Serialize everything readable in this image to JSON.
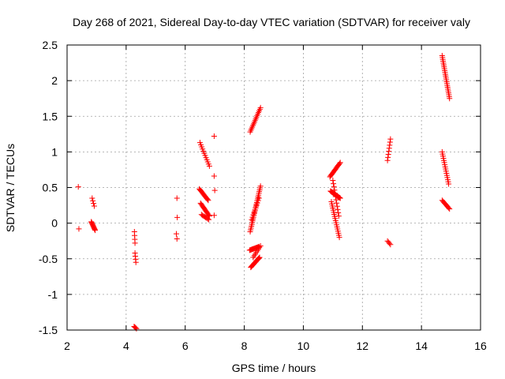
{
  "chart_data": {
    "type": "scatter",
    "title": "Day 268 of 2021, Sidereal Day-to-day VTEC variation (SDTVAR) for receiver valy",
    "xlabel": "GPS time / hours",
    "ylabel": "SDTVAR / TECUs",
    "xlim": [
      2,
      16
    ],
    "ylim": [
      -1.5,
      2.5
    ],
    "xticks": [
      2,
      4,
      6,
      8,
      10,
      12,
      14,
      16
    ],
    "yticks": [
      -1.5,
      -1,
      -0.5,
      0,
      0.5,
      1,
      1.5,
      2,
      2.5
    ],
    "xtick_labels": [
      "2",
      "4",
      "6",
      "8",
      "10",
      "12",
      "14",
      "16"
    ],
    "ytick_labels": [
      "-1.5",
      "-1",
      "-0.5",
      "0",
      "0.5",
      "1",
      "1.5",
      "2",
      "2.5"
    ],
    "grid": true,
    "marker": "+",
    "color": "#ff0000",
    "segments": [
      {
        "x0": 2.38,
        "x1": 2.38,
        "y0": 0.51,
        "y1": 0.51,
        "n": 1
      },
      {
        "x0": 2.4,
        "x1": 2.4,
        "y0": -0.08,
        "y1": -0.08,
        "n": 1
      },
      {
        "x0": 2.85,
        "x1": 2.92,
        "y0": 0.35,
        "y1": 0.24,
        "n": 4
      },
      {
        "x0": 2.82,
        "x1": 2.95,
        "y0": 0.02,
        "y1": -0.1,
        "n": 12
      },
      {
        "x0": 4.28,
        "x1": 4.3,
        "y0": -0.12,
        "y1": -0.28,
        "n": 4
      },
      {
        "x0": 4.3,
        "x1": 4.33,
        "y0": -0.42,
        "y1": -0.55,
        "n": 4
      },
      {
        "x0": 4.27,
        "x1": 4.35,
        "y0": -1.45,
        "y1": -1.48,
        "n": 4
      },
      {
        "x0": 5.72,
        "x1": 5.73,
        "y0": 0.35,
        "y1": 0.08,
        "n": 2
      },
      {
        "x0": 5.7,
        "x1": 5.72,
        "y0": -0.15,
        "y1": -0.22,
        "n": 2
      },
      {
        "x0": 6.5,
        "x1": 6.82,
        "y0": 1.13,
        "y1": 0.8,
        "n": 12
      },
      {
        "x0": 6.48,
        "x1": 6.78,
        "y0": 0.48,
        "y1": 0.32,
        "n": 14
      },
      {
        "x0": 6.52,
        "x1": 6.82,
        "y0": 0.28,
        "y1": 0.1,
        "n": 14
      },
      {
        "x0": 6.55,
        "x1": 6.8,
        "y0": 0.12,
        "y1": 0.05,
        "n": 8
      },
      {
        "x0": 6.98,
        "x1": 6.98,
        "y0": 1.22,
        "y1": 1.22,
        "n": 1
      },
      {
        "x0": 6.98,
        "x1": 7.0,
        "y0": 0.66,
        "y1": 0.46,
        "n": 2
      },
      {
        "x0": 6.98,
        "x1": 6.98,
        "y0": 0.11,
        "y1": 0.11,
        "n": 1
      },
      {
        "x0": 8.2,
        "x1": 8.55,
        "y0": 1.28,
        "y1": 1.62,
        "n": 16
      },
      {
        "x0": 8.2,
        "x1": 8.55,
        "y0": -0.12,
        "y1": 0.52,
        "n": 26
      },
      {
        "x0": 8.25,
        "x1": 8.5,
        "y0": 0.05,
        "y1": 0.35,
        "n": 10
      },
      {
        "x0": 8.18,
        "x1": 8.5,
        "y0": -0.38,
        "y1": -0.33,
        "n": 14
      },
      {
        "x0": 8.22,
        "x1": 8.52,
        "y0": -0.62,
        "y1": -0.48,
        "n": 16
      },
      {
        "x0": 8.3,
        "x1": 8.55,
        "y0": -0.48,
        "y1": -0.32,
        "n": 8
      },
      {
        "x0": 10.9,
        "x1": 11.25,
        "y0": 0.65,
        "y1": 0.85,
        "n": 16
      },
      {
        "x0": 10.92,
        "x1": 11.25,
        "y0": 0.45,
        "y1": 0.35,
        "n": 18
      },
      {
        "x0": 10.95,
        "x1": 11.22,
        "y0": 0.3,
        "y1": -0.2,
        "n": 18
      },
      {
        "x0": 11.0,
        "x1": 11.2,
        "y0": 0.6,
        "y1": 0.1,
        "n": 12
      },
      {
        "x0": 12.85,
        "x1": 12.95,
        "y0": 0.88,
        "y1": 1.18,
        "n": 8
      },
      {
        "x0": 12.85,
        "x1": 12.95,
        "y0": -0.25,
        "y1": -0.3,
        "n": 4
      },
      {
        "x0": 14.7,
        "x1": 14.95,
        "y0": 2.35,
        "y1": 1.75,
        "n": 24
      },
      {
        "x0": 14.7,
        "x1": 14.92,
        "y0": 1.0,
        "y1": 0.55,
        "n": 16
      },
      {
        "x0": 14.7,
        "x1": 14.95,
        "y0": 0.32,
        "y1": 0.2,
        "n": 10
      }
    ]
  }
}
